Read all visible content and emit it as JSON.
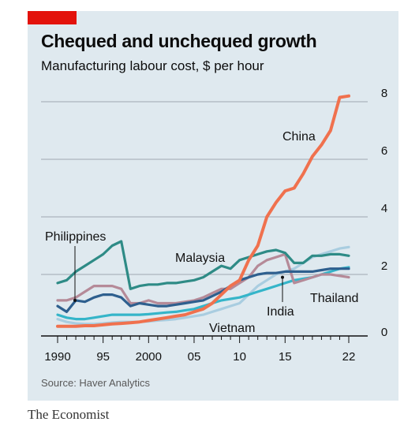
{
  "header": {
    "title": "Chequed and unchequed growth",
    "subtitle": "Manufacturing labour cost, $ per hour"
  },
  "source": "Source: Haver Analytics",
  "publisher": "The Economist",
  "colors": {
    "panel_background": "#dfe9ef",
    "brand_red": "#e3120b",
    "china": "#f0714e",
    "malaysia": "#2e8b86",
    "philippines": "#2e5f8e",
    "thailand": "#b58a98",
    "india": "#35b5c9",
    "vietnam": "#a9cde0"
  },
  "chart_data": {
    "type": "line",
    "title": "Chequed and unchequed growth",
    "subtitle": "Manufacturing labour cost, $ per hour",
    "x_tick_labels": [
      "1990",
      "95",
      "2000",
      "05",
      "10",
      "15",
      "22"
    ],
    "x_tick_values": [
      1990,
      1995,
      2000,
      2005,
      2010,
      2015,
      2022
    ],
    "y_ticks": [
      0,
      2,
      4,
      6,
      8
    ],
    "ylim": [
      0,
      8.3
    ],
    "xlim": [
      1990,
      2022
    ],
    "y_axis_side": "right",
    "grid": "horizontal",
    "legend": "direct labels",
    "x": [
      1990,
      1991,
      1992,
      1993,
      1994,
      1995,
      1996,
      1997,
      1998,
      1999,
      2000,
      2001,
      2002,
      2003,
      2004,
      2005,
      2006,
      2007,
      2008,
      2009,
      2010,
      2011,
      2012,
      2013,
      2014,
      2015,
      2016,
      2017,
      2018,
      2019,
      2020,
      2021,
      2022
    ],
    "series": [
      {
        "name": "Vietnam",
        "values": [
          0.45,
          0.35,
          0.3,
          0.28,
          0.28,
          0.3,
          0.33,
          0.35,
          0.35,
          0.35,
          0.37,
          0.4,
          0.42,
          0.45,
          0.5,
          0.55,
          0.6,
          0.7,
          0.8,
          0.9,
          1.0,
          1.3,
          1.6,
          1.8,
          2.0,
          2.1,
          2.2,
          2.4,
          2.6,
          2.7,
          2.8,
          2.9,
          2.95
        ]
      },
      {
        "name": "India",
        "values": [
          0.6,
          0.5,
          0.45,
          0.45,
          0.5,
          0.55,
          0.6,
          0.6,
          0.6,
          0.6,
          0.62,
          0.65,
          0.68,
          0.7,
          0.75,
          0.8,
          0.9,
          1.0,
          1.1,
          1.15,
          1.2,
          1.3,
          1.4,
          1.5,
          1.6,
          1.7,
          1.8,
          1.85,
          1.9,
          2.0,
          2.1,
          2.2,
          2.25
        ]
      },
      {
        "name": "Thailand",
        "values": [
          1.1,
          1.1,
          1.2,
          1.4,
          1.6,
          1.6,
          1.6,
          1.5,
          1.0,
          1.0,
          1.1,
          1.0,
          1.0,
          1.0,
          1.05,
          1.1,
          1.2,
          1.35,
          1.5,
          1.5,
          1.7,
          1.9,
          2.3,
          2.5,
          2.6,
          2.7,
          1.7,
          1.8,
          1.9,
          2.0,
          2.0,
          1.95,
          1.9
        ]
      },
      {
        "name": "Philippines",
        "values": [
          0.9,
          0.7,
          1.1,
          1.05,
          1.2,
          1.3,
          1.3,
          1.2,
          0.9,
          1.0,
          0.95,
          0.9,
          0.9,
          0.95,
          1.0,
          1.05,
          1.1,
          1.25,
          1.4,
          1.6,
          1.8,
          1.9,
          2.0,
          2.05,
          2.05,
          2.1,
          2.1,
          2.1,
          2.1,
          2.15,
          2.2,
          2.2,
          2.2
        ]
      },
      {
        "name": "Malaysia",
        "values": [
          1.7,
          1.8,
          2.1,
          2.3,
          2.5,
          2.7,
          3.0,
          3.15,
          1.5,
          1.6,
          1.65,
          1.65,
          1.7,
          1.7,
          1.75,
          1.8,
          1.9,
          2.1,
          2.3,
          2.2,
          2.5,
          2.6,
          2.7,
          2.8,
          2.85,
          2.75,
          2.4,
          2.4,
          2.65,
          2.65,
          2.7,
          2.7,
          2.65
        ]
      },
      {
        "name": "China",
        "values": [
          0.2,
          0.2,
          0.2,
          0.22,
          0.22,
          0.25,
          0.28,
          0.3,
          0.32,
          0.35,
          0.4,
          0.45,
          0.5,
          0.55,
          0.6,
          0.7,
          0.8,
          1.0,
          1.3,
          1.6,
          1.8,
          2.5,
          3.0,
          4.0,
          4.5,
          4.9,
          5.0,
          5.5,
          6.1,
          6.5,
          7.0,
          8.15,
          8.2
        ]
      }
    ],
    "labels": {
      "china": "China",
      "malaysia": "Malaysia",
      "philippines": "Philippines",
      "thailand": "Thailand",
      "india": "India",
      "vietnam": "Vietnam"
    }
  }
}
